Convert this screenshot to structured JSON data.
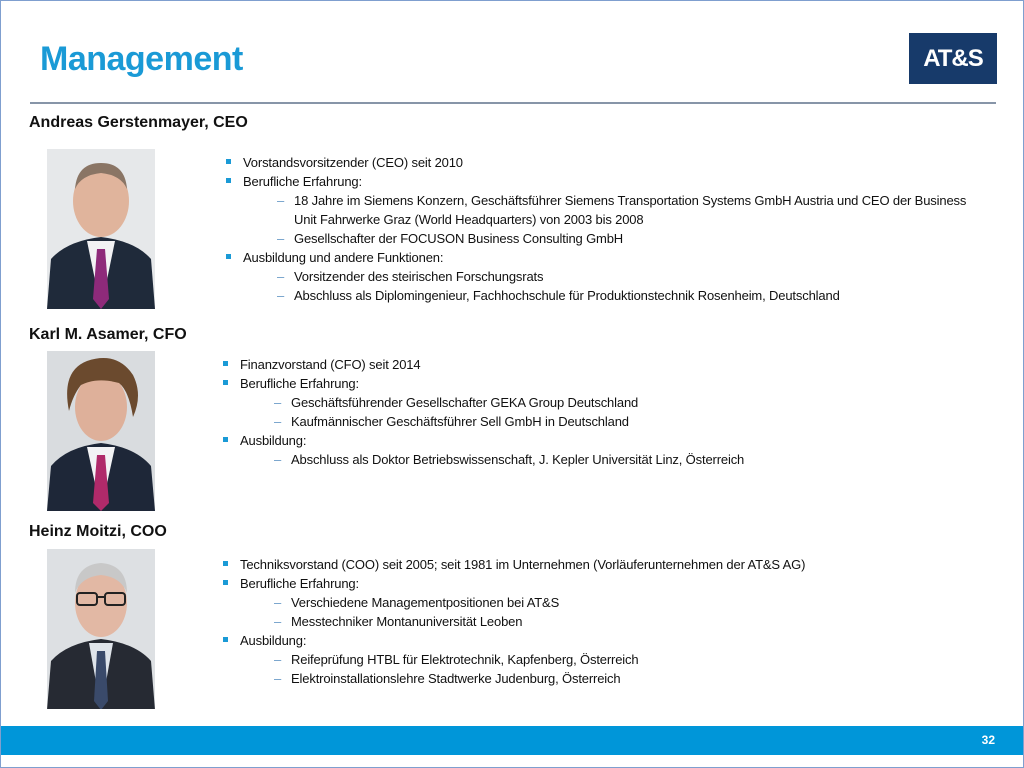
{
  "slide": {
    "title": "Management",
    "logo_text": "AT&S",
    "page_number": "32",
    "colors": {
      "title": "#1a9ad6",
      "logo_bg": "#173a6a",
      "footer": "#0096d9",
      "bullet": "#1a9ad6"
    }
  },
  "people": [
    {
      "name": "Andreas Gerstenmayer, CEO",
      "items": [
        {
          "type": "bullet",
          "text": "Vorstandsvorsitzender (CEO) seit 2010"
        },
        {
          "type": "bullet",
          "text": "Berufliche Erfahrung:"
        },
        {
          "type": "sub",
          "text": "18 Jahre im Siemens Konzern, Geschäftsführer Siemens Transportation Systems GmbH Austria und CEO der Business Unit Fahrwerke Graz (World Headquarters) von 2003 bis 2008"
        },
        {
          "type": "sub",
          "text": "Gesellschafter der FOCUSON Business Consulting GmbH"
        },
        {
          "type": "bullet",
          "text": "Ausbildung und andere Funktionen:"
        },
        {
          "type": "sub",
          "text": "Vorsitzender des steirischen Forschungsrats"
        },
        {
          "type": "sub",
          "text": "Abschluss als Diplomingenieur, Fachhochschule für Produktionstechnik Rosenheim, Deutschland"
        }
      ]
    },
    {
      "name": "Karl M. Asamer, CFO",
      "items": [
        {
          "type": "bullet",
          "text": "Finanzvorstand (CFO) seit 2014"
        },
        {
          "type": "bullet",
          "text": "Berufliche Erfahrung:"
        },
        {
          "type": "sub",
          "text": "Geschäftsführender Gesellschafter GEKA Group Deutschland"
        },
        {
          "type": "sub",
          "text": "Kaufmännischer Geschäftsführer Sell GmbH in Deutschland"
        },
        {
          "type": "bullet",
          "text": "Ausbildung:"
        },
        {
          "type": "sub",
          "text": "Abschluss als Doktor Betriebswissenschaft, J. Kepler Universität Linz, Österreich"
        }
      ]
    },
    {
      "name": "Heinz Moitzi, COO",
      "items": [
        {
          "type": "bullet",
          "text": "Techniksvorstand (COO) seit 2005; seit 1981 im Unternehmen (Vorläuferunternehmen der AT&S AG)"
        },
        {
          "type": "bullet",
          "text": "Berufliche Erfahrung:"
        },
        {
          "type": "sub",
          "text": "Verschiedene Managementpositionen bei AT&S"
        },
        {
          "type": "sub",
          "text": "Messtechniker Montanuniversität Leoben"
        },
        {
          "type": "bullet",
          "text": "Ausbildung:"
        },
        {
          "type": "sub",
          "text": "Reifeprüfung HTBL für Elektrotechnik, Kapfenberg, Österreich"
        },
        {
          "type": "sub",
          "text": "Elektroinstallationslehre Stadtwerke Judenburg, Österreich"
        }
      ]
    }
  ]
}
